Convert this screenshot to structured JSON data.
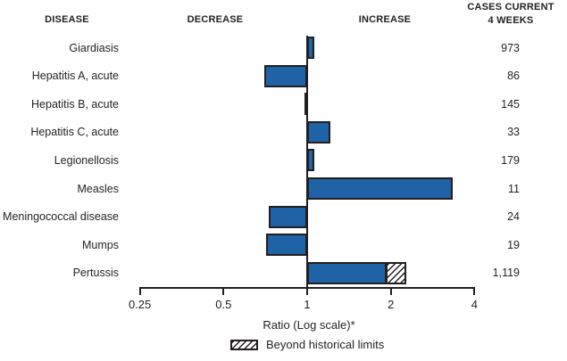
{
  "header": {
    "disease": "DISEASE",
    "decrease": "DECREASE",
    "increase": "INCREASE",
    "cases_line1": "CASES CURRENT",
    "cases_line2": "4 WEEKS"
  },
  "legend": {
    "label": "Beyond historical limits",
    "style": "hatched"
  },
  "colors": {
    "bar_fill": "#1f62a5",
    "bar_outline": "#231f20",
    "text": "#231f20"
  },
  "chart_data": {
    "type": "bar",
    "orientation": "horizontal",
    "scale": "log",
    "xlabel": "Ratio (Log scale)*",
    "xlim": [
      0.25,
      4
    ],
    "baseline_ratio": 1,
    "x_ticks": [
      "0.25",
      "0.5",
      "1",
      "2",
      "4"
    ],
    "x_tick_values": [
      0.25,
      0.5,
      1,
      2,
      4
    ],
    "legend_label": "Beyond historical limits",
    "rows": [
      {
        "disease": "Giardiasis",
        "ratio": 1.06,
        "cases": "973"
      },
      {
        "disease": "Hepatitis A, acute",
        "ratio": 0.7,
        "cases": "86"
      },
      {
        "disease": "Hepatitis B, acute",
        "ratio": 0.98,
        "cases": "145"
      },
      {
        "disease": "Hepatitis C, acute",
        "ratio": 1.21,
        "cases": "33"
      },
      {
        "disease": "Legionellosis",
        "ratio": 1.06,
        "cases": "179"
      },
      {
        "disease": "Measles",
        "ratio": 3.35,
        "cases": "11"
      },
      {
        "disease": "Meningococcal disease",
        "ratio": 0.73,
        "cases": "24"
      },
      {
        "disease": "Mumps",
        "ratio": 0.71,
        "cases": "19"
      },
      {
        "disease": "Pertussis",
        "ratio": 1.93,
        "beyond_ratio": 2.27,
        "cases": "1,119"
      }
    ]
  }
}
